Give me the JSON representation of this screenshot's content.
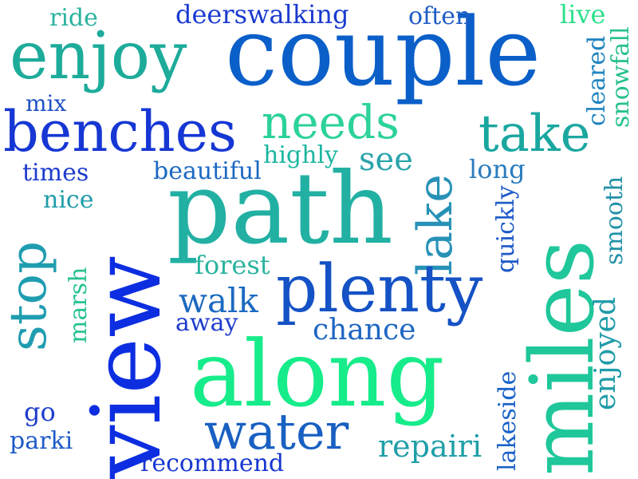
{
  "words": [
    {
      "text": "couple",
      "color": "#0b5fc9"
    },
    {
      "text": "enjoy",
      "color": "#1dab9a"
    },
    {
      "text": "benches",
      "color": "#1637d4"
    },
    {
      "text": "needs",
      "color": "#2cd29c"
    },
    {
      "text": "take",
      "color": "#1aa7a0"
    },
    {
      "text": "path",
      "color": "#22b0a3"
    },
    {
      "text": "view",
      "color": "#0d2ee0"
    },
    {
      "text": "lake",
      "color": "#2792b6"
    },
    {
      "text": "miles",
      "color": "#1fc79a"
    },
    {
      "text": "plenty",
      "color": "#1452c5"
    },
    {
      "text": "along",
      "color": "#16ec8a"
    },
    {
      "text": "stop",
      "color": "#1f9db0"
    },
    {
      "text": "water",
      "color": "#1860c2"
    },
    {
      "text": "deerswalking",
      "color": "#1a3ad0"
    },
    {
      "text": "often",
      "color": "#1e5cc6"
    },
    {
      "text": "ride",
      "color": "#2ab39e"
    },
    {
      "text": "live",
      "color": "#2de08c"
    },
    {
      "text": "cleared",
      "color": "#1f84c0"
    },
    {
      "text": "snowfall",
      "color": "#26c08e"
    },
    {
      "text": "mix",
      "color": "#2051c6"
    },
    {
      "text": "highly",
      "color": "#1cb6a0"
    },
    {
      "text": "see",
      "color": "#2aa4ab"
    },
    {
      "text": "times",
      "color": "#1e3ccd"
    },
    {
      "text": "beautiful",
      "color": "#1c69c2"
    },
    {
      "text": "long",
      "color": "#2b7cbd"
    },
    {
      "text": "nice",
      "color": "#1e9ca8"
    },
    {
      "text": "smooth",
      "color": "#2292a8"
    },
    {
      "text": "quickly",
      "color": "#1d59c8"
    },
    {
      "text": "forest",
      "color": "#2ab39e"
    },
    {
      "text": "walk",
      "color": "#1c6ac0"
    },
    {
      "text": "away",
      "color": "#1e3ccd"
    },
    {
      "text": "marsh",
      "color": "#27c292"
    },
    {
      "text": "chance",
      "color": "#1f66c2"
    },
    {
      "text": "enjoyed",
      "color": "#1f9ca8"
    },
    {
      "text": "lakeside",
      "color": "#1a62c8"
    },
    {
      "text": "go",
      "color": "#1f3ecd"
    },
    {
      "text": "parki",
      "color": "#1e5ac8"
    },
    {
      "text": "repairi",
      "color": "#1f9fa8"
    },
    {
      "text": "recommend",
      "color": "#1837d0"
    }
  ]
}
